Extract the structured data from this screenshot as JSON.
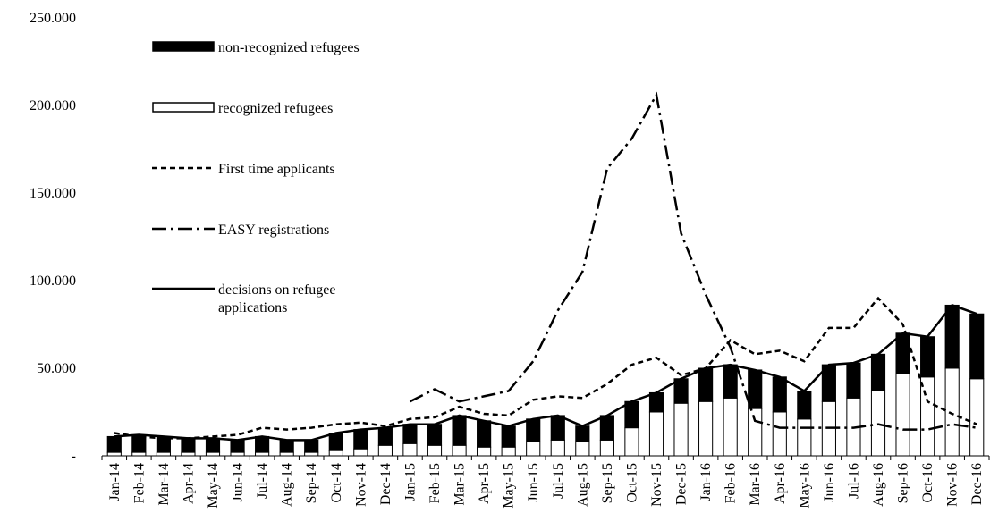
{
  "chart_data": {
    "type": "bar",
    "stacked": true,
    "categories": [
      "Jan-14",
      "Feb-14",
      "Mar-14",
      "Apr-14",
      "May-14",
      "Jun-14",
      "Jul-14",
      "Aug-14",
      "Sep-14",
      "Oct-14",
      "Nov-14",
      "Dec-14",
      "Jan-15",
      "Feb-15",
      "Mar-15",
      "Apr-15",
      "May-15",
      "Jun-15",
      "Jul-15",
      "Aug-15",
      "Sep-15",
      "Oct-15",
      "Nov-15",
      "Dec-15",
      "Jan-16",
      "Feb-16",
      "Mar-16",
      "Apr-16",
      "May-16",
      "Jun-16",
      "Jul-16",
      "Aug-16",
      "Sep-16",
      "Oct-16",
      "Nov-16",
      "Dec-16"
    ],
    "series": [
      {
        "name": "non-recognized refugees",
        "type": "bar",
        "color": "#000000",
        "values": [
          9000,
          10000,
          9000,
          8000,
          8000,
          7000,
          9000,
          7000,
          7000,
          10000,
          11000,
          10000,
          11000,
          12000,
          17000,
          15000,
          12000,
          13000,
          14000,
          9000,
          14000,
          15000,
          11000,
          14000,
          19000,
          19000,
          22000,
          20000,
          16000,
          21000,
          20000,
          21000,
          23000,
          23000,
          36000,
          37000
        ]
      },
      {
        "name": "recognized refugees",
        "type": "bar",
        "color": "#ffffff",
        "values": [
          2000,
          2000,
          2000,
          2000,
          2000,
          2000,
          2000,
          2000,
          2000,
          3000,
          4000,
          6000,
          7000,
          6000,
          6000,
          5000,
          5000,
          8000,
          9000,
          8000,
          9000,
          16000,
          25000,
          30000,
          31000,
          33000,
          27000,
          25000,
          21000,
          31000,
          33000,
          37000,
          47000,
          45000,
          50000,
          44000
        ]
      },
      {
        "name": "First time applicants",
        "type": "line",
        "line_style": "dashed",
        "color": "#000000",
        "values": [
          13000,
          11000,
          10000,
          10000,
          11000,
          12000,
          16000,
          15000,
          16000,
          18000,
          19000,
          17000,
          21000,
          22000,
          28000,
          24000,
          23000,
          32000,
          34000,
          33000,
          41000,
          52000,
          56000,
          46000,
          50000,
          66000,
          58000,
          60000,
          54000,
          73000,
          73000,
          90000,
          75000,
          31000,
          24000,
          18000
        ]
      },
      {
        "name": "EASY registrations",
        "type": "line",
        "line_style": "dashdot",
        "color": "#000000",
        "values": [
          null,
          null,
          null,
          null,
          null,
          null,
          null,
          null,
          null,
          null,
          null,
          null,
          31000,
          38000,
          31000,
          34000,
          37000,
          54000,
          83000,
          105000,
          164000,
          181000,
          206000,
          127000,
          92000,
          62000,
          20000,
          16000,
          16000,
          16000,
          16000,
          18000,
          15000,
          15000,
          18000,
          16000
        ]
      },
      {
        "name": "decisions on refugee applications",
        "type": "line",
        "line_style": "solid",
        "color": "#000000",
        "values": [
          11000,
          12000,
          11000,
          10000,
          10000,
          9000,
          11000,
          9000,
          9000,
          13000,
          15000,
          16000,
          18000,
          18000,
          23000,
          20000,
          17000,
          21000,
          23000,
          17000,
          23000,
          31000,
          36000,
          44000,
          50000,
          52000,
          49000,
          45000,
          37000,
          52000,
          53000,
          58000,
          70000,
          68000,
          86000,
          81000
        ]
      }
    ],
    "ylim": [
      0,
      250000
    ],
    "yticks": [
      {
        "value": 0,
        "label": "-"
      },
      {
        "value": 50000,
        "label": "50.000"
      },
      {
        "value": 100000,
        "label": "100.000"
      },
      {
        "value": 150000,
        "label": "150.000"
      },
      {
        "value": 200000,
        "label": "200.000"
      },
      {
        "value": 250000,
        "label": "250.000"
      }
    ],
    "legend": "upper left"
  }
}
